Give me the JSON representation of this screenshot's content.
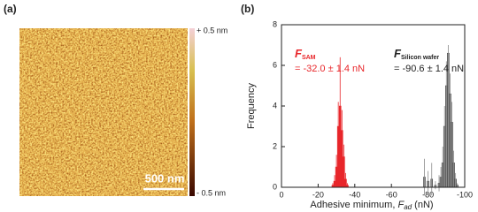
{
  "panel_a": {
    "label": "(a)",
    "scale_top": "+ 0.5 nm",
    "scale_bottom": "- 0.5 nm",
    "scale_bar": "500 nm"
  },
  "chart_data": {
    "type": "histogram",
    "panel_label": "(b)",
    "x_label": {
      "text": "Adhesive minimum, ",
      "symbol": "F",
      "subscript": "ad",
      "unit": " (nN)"
    },
    "y_label": "Frequency",
    "xlim": [
      0,
      -100
    ],
    "xticks": [
      0,
      -20,
      -40,
      -60,
      -80,
      -100
    ],
    "ylim": [
      0,
      8
    ],
    "yticks": [
      0,
      2,
      4,
      6,
      8
    ],
    "series": [
      {
        "name_symbol": "F",
        "name_subscript": "SAM",
        "label": "= -32.0 ± 1.4 nN",
        "color": "#e8262a",
        "bins": [
          -27.5,
          -28.5,
          -29.5,
          -30.5,
          -31.5,
          -32.5,
          -33.5,
          -34.5,
          -35.5,
          -36.5
        ],
        "values": [
          0.1,
          0.3,
          1.0,
          3.0,
          4.0,
          2.8,
          1.5,
          0.4,
          0.1
        ],
        "errors": [
          0.1,
          0.3,
          0.6,
          1.2,
          2.4,
          1.0,
          0.6,
          0.3,
          0.1
        ]
      },
      {
        "name_symbol": "F",
        "name_subscript": "Silicon wafer",
        "label": "= -90.6 ± 1.4 nN",
        "color": "#8c8c8c",
        "bins": [
          -77.5,
          -78.5,
          -79.5,
          -80.5,
          -81.5,
          -82.5,
          -83.5,
          -84.5,
          -85.5,
          -86.5,
          -87.5,
          -88.5,
          -89.5,
          -90.5,
          -91.5,
          -92.5,
          -93.5,
          -94.5,
          -95.5,
          -96.5
        ],
        "values": [
          0.5,
          0,
          0.3,
          0,
          0.4,
          0,
          0.1,
          0,
          0.2,
          0.5,
          1.2,
          3.0,
          5.0,
          6.6,
          4.6,
          3.2,
          1.2,
          0.4,
          0.1
        ],
        "errors": [
          0.9,
          0,
          0.5,
          0,
          0.8,
          0,
          0.2,
          0,
          0.4,
          0.5,
          0.8,
          1.0,
          1.2,
          0.4,
          1.0,
          1.0,
          0.6,
          0.3,
          0.1
        ]
      }
    ]
  }
}
